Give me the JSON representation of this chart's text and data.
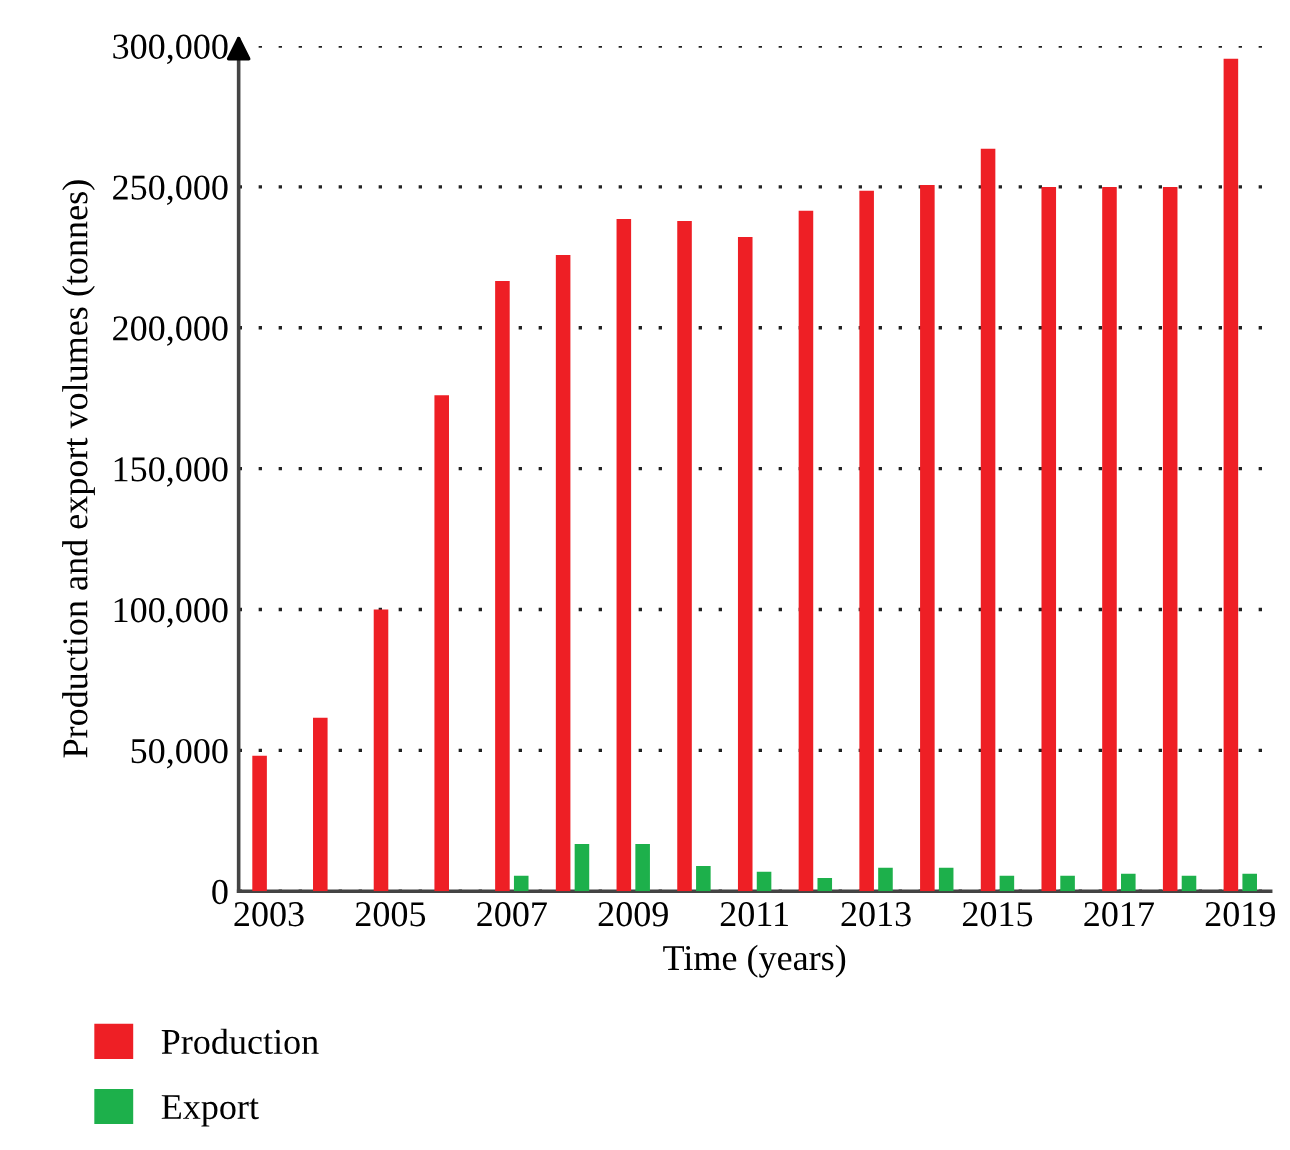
{
  "chart_data": {
    "type": "bar",
    "xlabel": "Time (years)",
    "ylabel": "Production and export volumes (tonnes)",
    "categories": [
      "2003",
      null,
      "2005",
      null,
      "2007",
      null,
      "2009",
      null,
      "2011",
      null,
      "2013",
      null,
      "2015",
      null,
      "2017",
      null,
      "2019"
    ],
    "series": [
      {
        "name": "Production",
        "color": "#ee1f25",
        "values": [
          48100,
          61600,
          100000,
          176000,
          216600,
          225800,
          238600,
          237900,
          232200,
          241500,
          248600,
          250700,
          263500,
          250000,
          250000,
          250000,
          295500
        ]
      },
      {
        "name": "Export",
        "color": "#1db04b",
        "values": [
          null,
          null,
          null,
          null,
          5500,
          16800,
          16800,
          9000,
          6900,
          4700,
          8300,
          8300,
          5500,
          5500,
          6200,
          5500,
          6200
        ]
      }
    ],
    "ylim": [
      0,
      300000
    ],
    "yticks": [
      {
        "value": 0,
        "label": "0"
      },
      {
        "value": 50000,
        "label": "50,000"
      },
      {
        "value": 100000,
        "label": "100,000"
      },
      {
        "value": 150000,
        "label": "150,000"
      },
      {
        "value": 200000,
        "label": "200,000"
      },
      {
        "value": 250000,
        "label": "250,000"
      },
      {
        "value": 300000,
        "label": "300,000"
      }
    ],
    "grid": "y",
    "legend": "bottom left"
  }
}
